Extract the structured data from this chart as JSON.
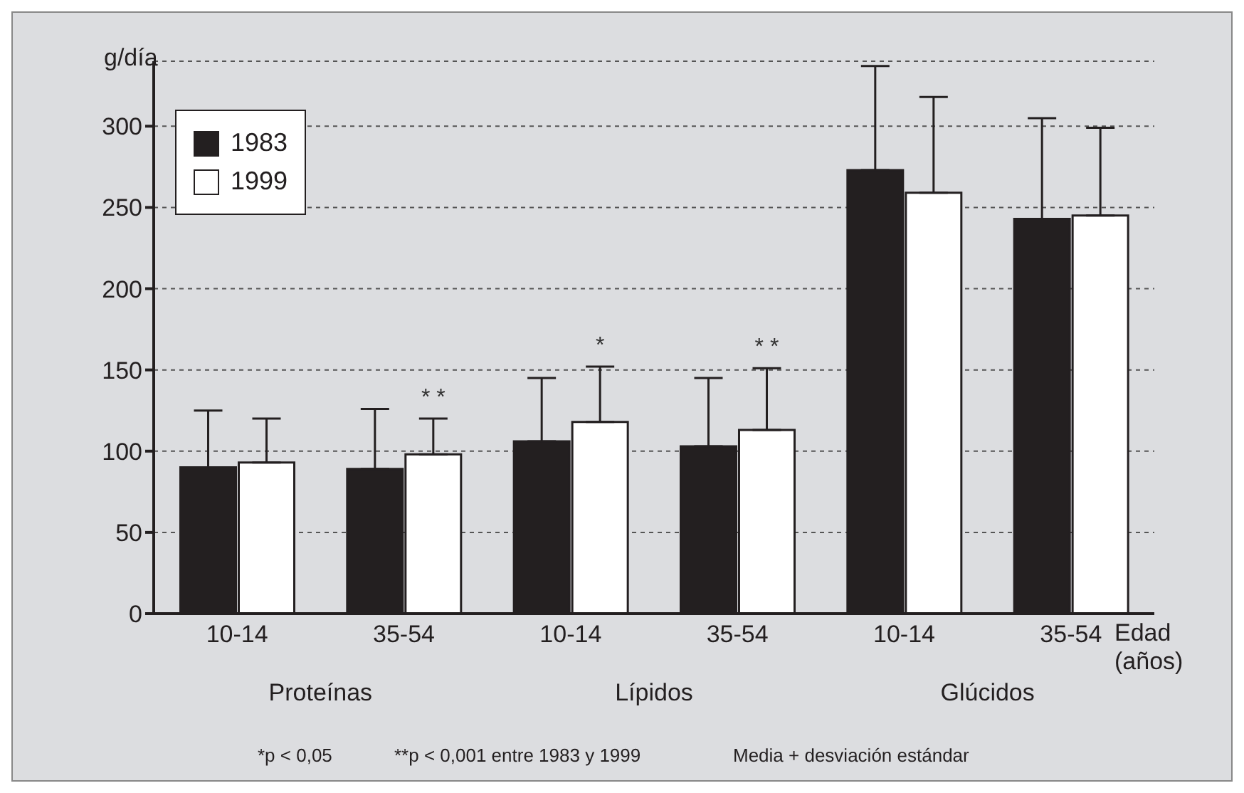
{
  "chart_data": {
    "type": "bar",
    "ylabel": "g/día",
    "xlabel": "Edad (años)",
    "categories": [
      "10-14",
      "35-54",
      "10-14",
      "35-54",
      "10-14",
      "35-54"
    ],
    "series": [
      {
        "name": "1983",
        "color": "#231f20",
        "values": [
          90,
          89,
          106,
          103,
          273,
          243
        ],
        "errors": [
          [
            90,
            125
          ],
          [
            89,
            126
          ],
          [
            106,
            145
          ],
          [
            103,
            145
          ],
          [
            273,
            337
          ],
          [
            243,
            305
          ]
        ]
      },
      {
        "name": "1999",
        "color": "#ffffff",
        "values": [
          93,
          98,
          118,
          113,
          259,
          245
        ],
        "errors": [
          [
            93,
            120
          ],
          [
            98,
            120
          ],
          [
            118,
            152
          ],
          [
            113,
            151
          ],
          [
            259,
            318
          ],
          [
            245,
            299
          ]
        ],
        "value_labels": [
          null,
          "* *",
          "*",
          "* *",
          null,
          null
        ]
      }
    ],
    "ylim": [
      0,
      340
    ],
    "yticks": [
      0,
      50,
      100,
      150,
      200,
      250,
      300
    ],
    "grid": "y",
    "legend": "top left",
    "annotations": [
      "Proteínas",
      "Lípidos",
      "Glúcidos",
      "*p < 0,05",
      "**p < 0,001 entre 1983 y 1999",
      "Media + desviación estándar"
    ]
  }
}
